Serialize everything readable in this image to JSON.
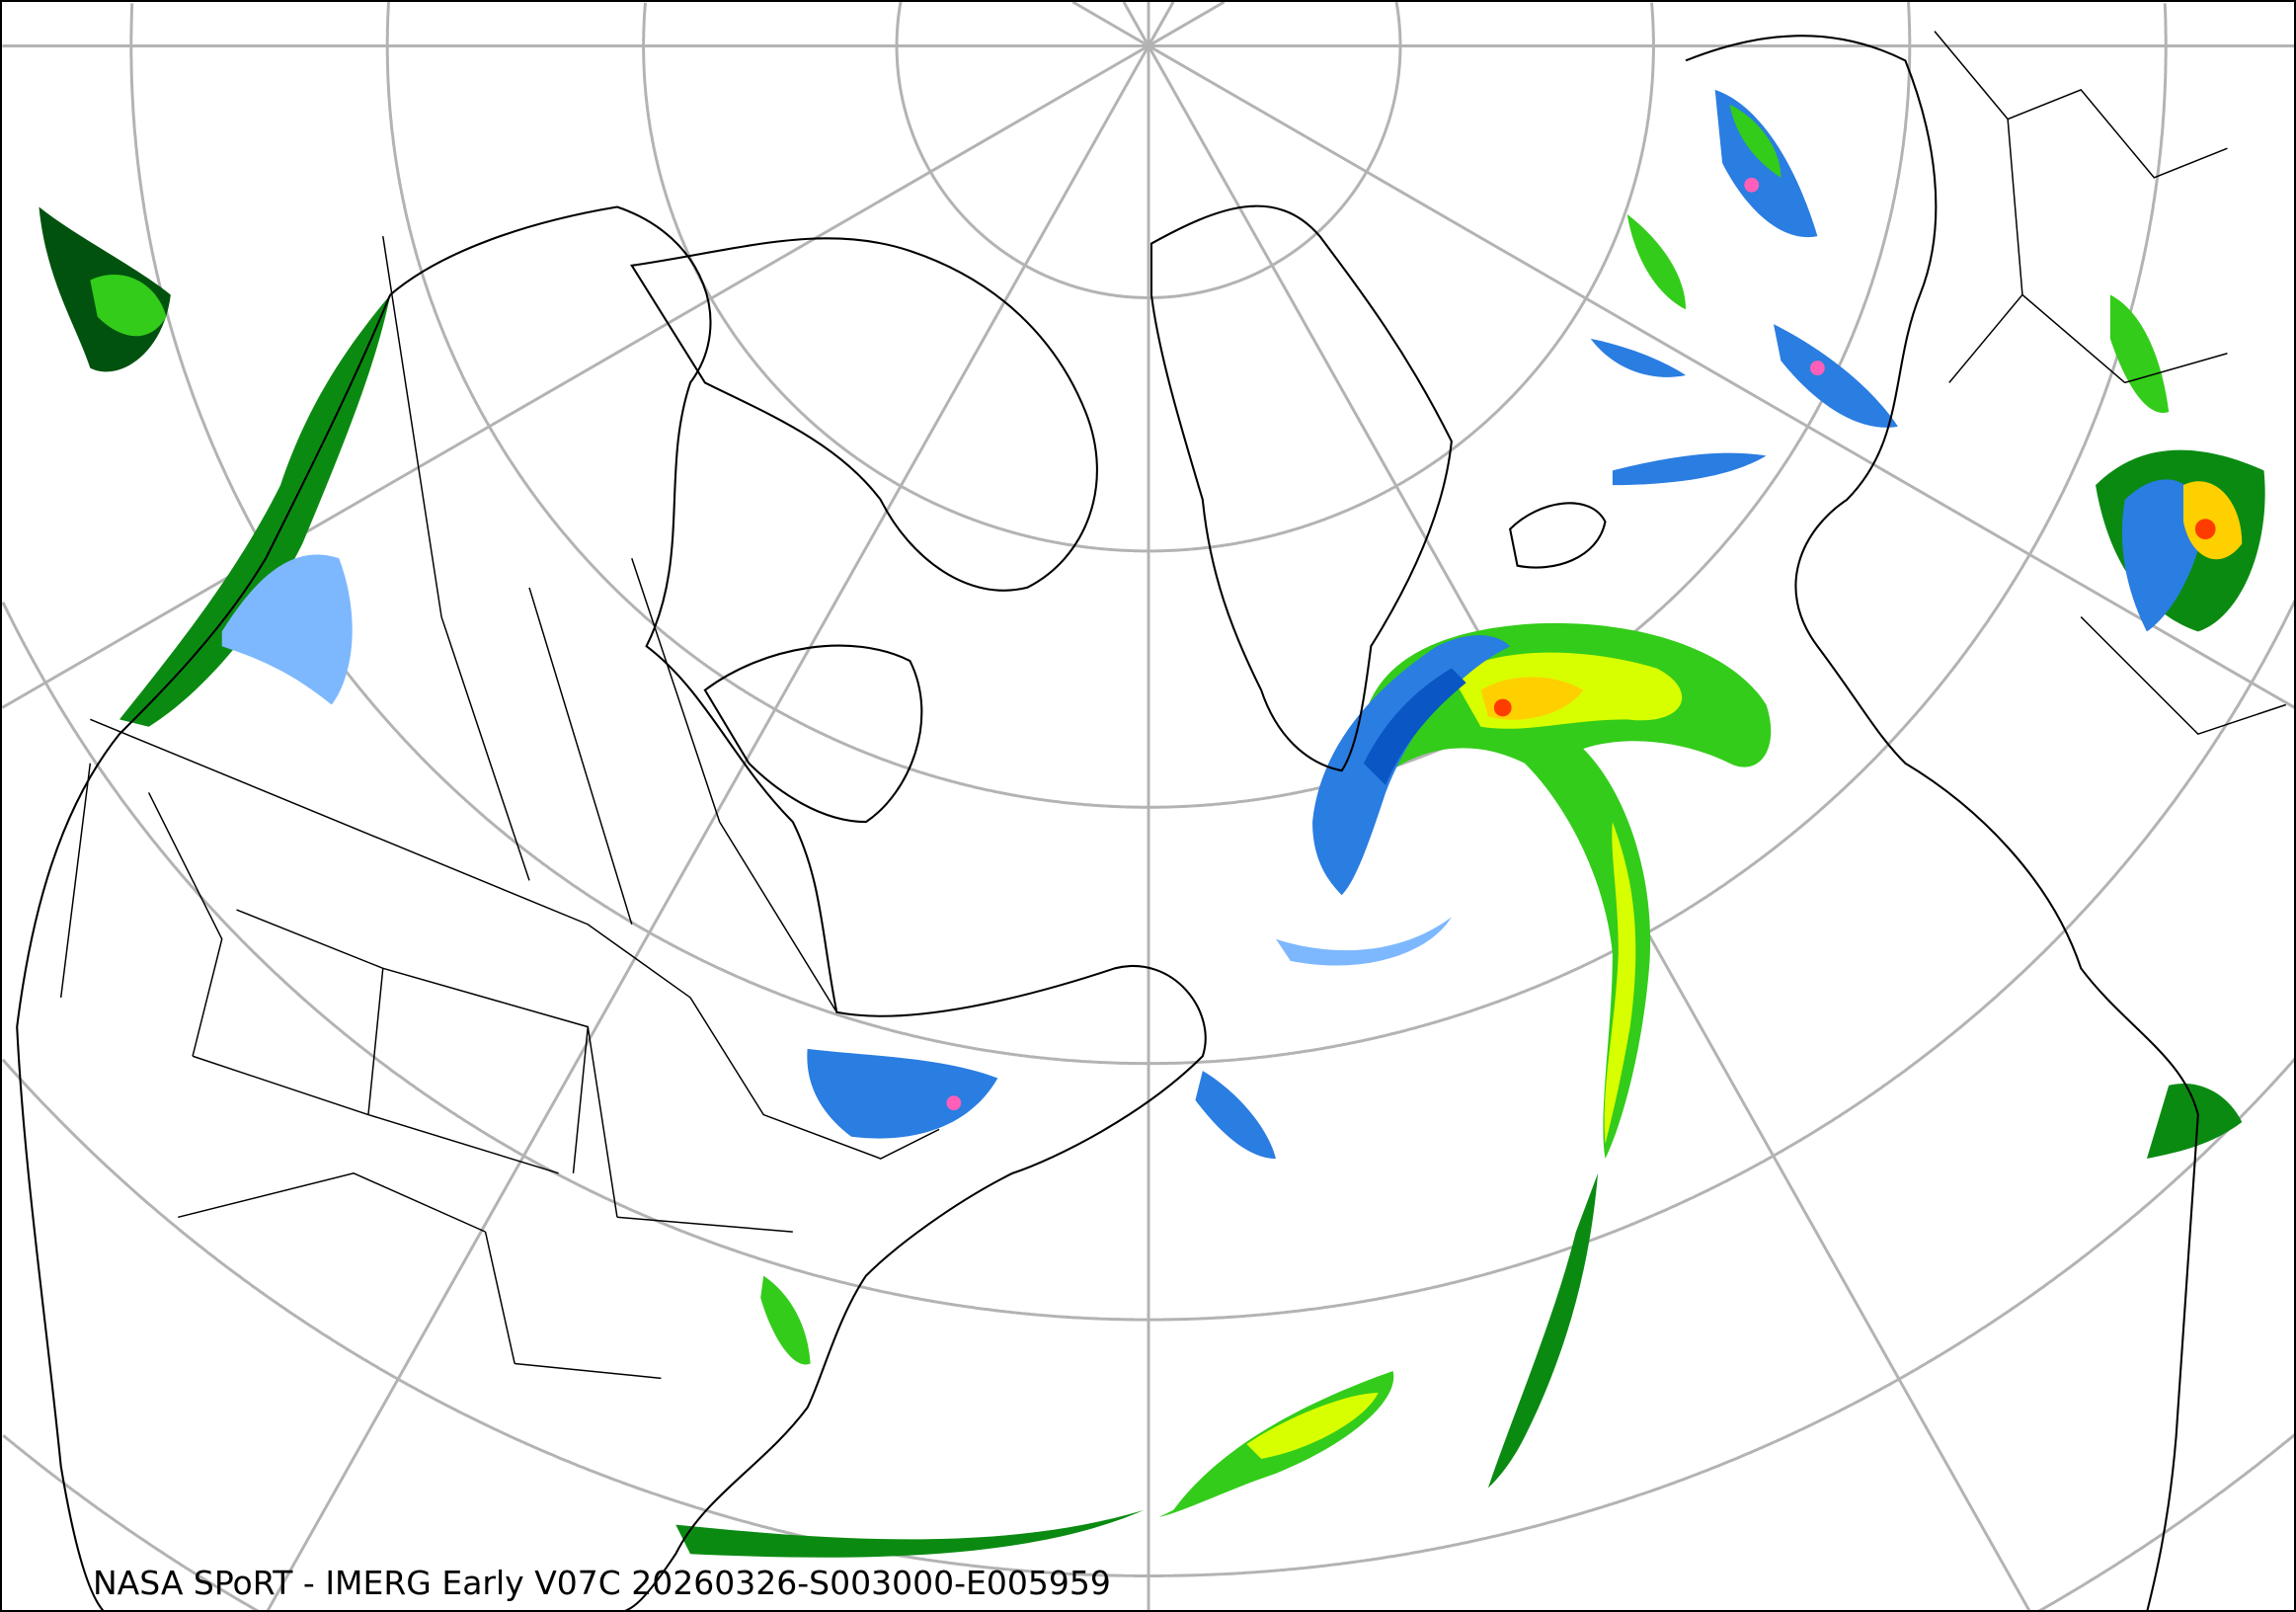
{
  "map": {
    "caption": "NASA SPoRT - IMERG Early V07C 20260326-S003000-E005959",
    "projection": "north-polar stereographic",
    "region": "North America, North Atlantic, Greenland, Europe",
    "graticule_color": "#b3b3b3",
    "coastline_color": "#000000",
    "precip_colors": [
      "#c8e1ff",
      "#7db8ff",
      "#2a7de1",
      "#0a56c4",
      "#00520e",
      "#0b8a12",
      "#33cc1a",
      "#7fff00",
      "#d8ff00",
      "#ffd000",
      "#ff8c00",
      "#ff3c00",
      "#ff5fb8"
    ]
  }
}
